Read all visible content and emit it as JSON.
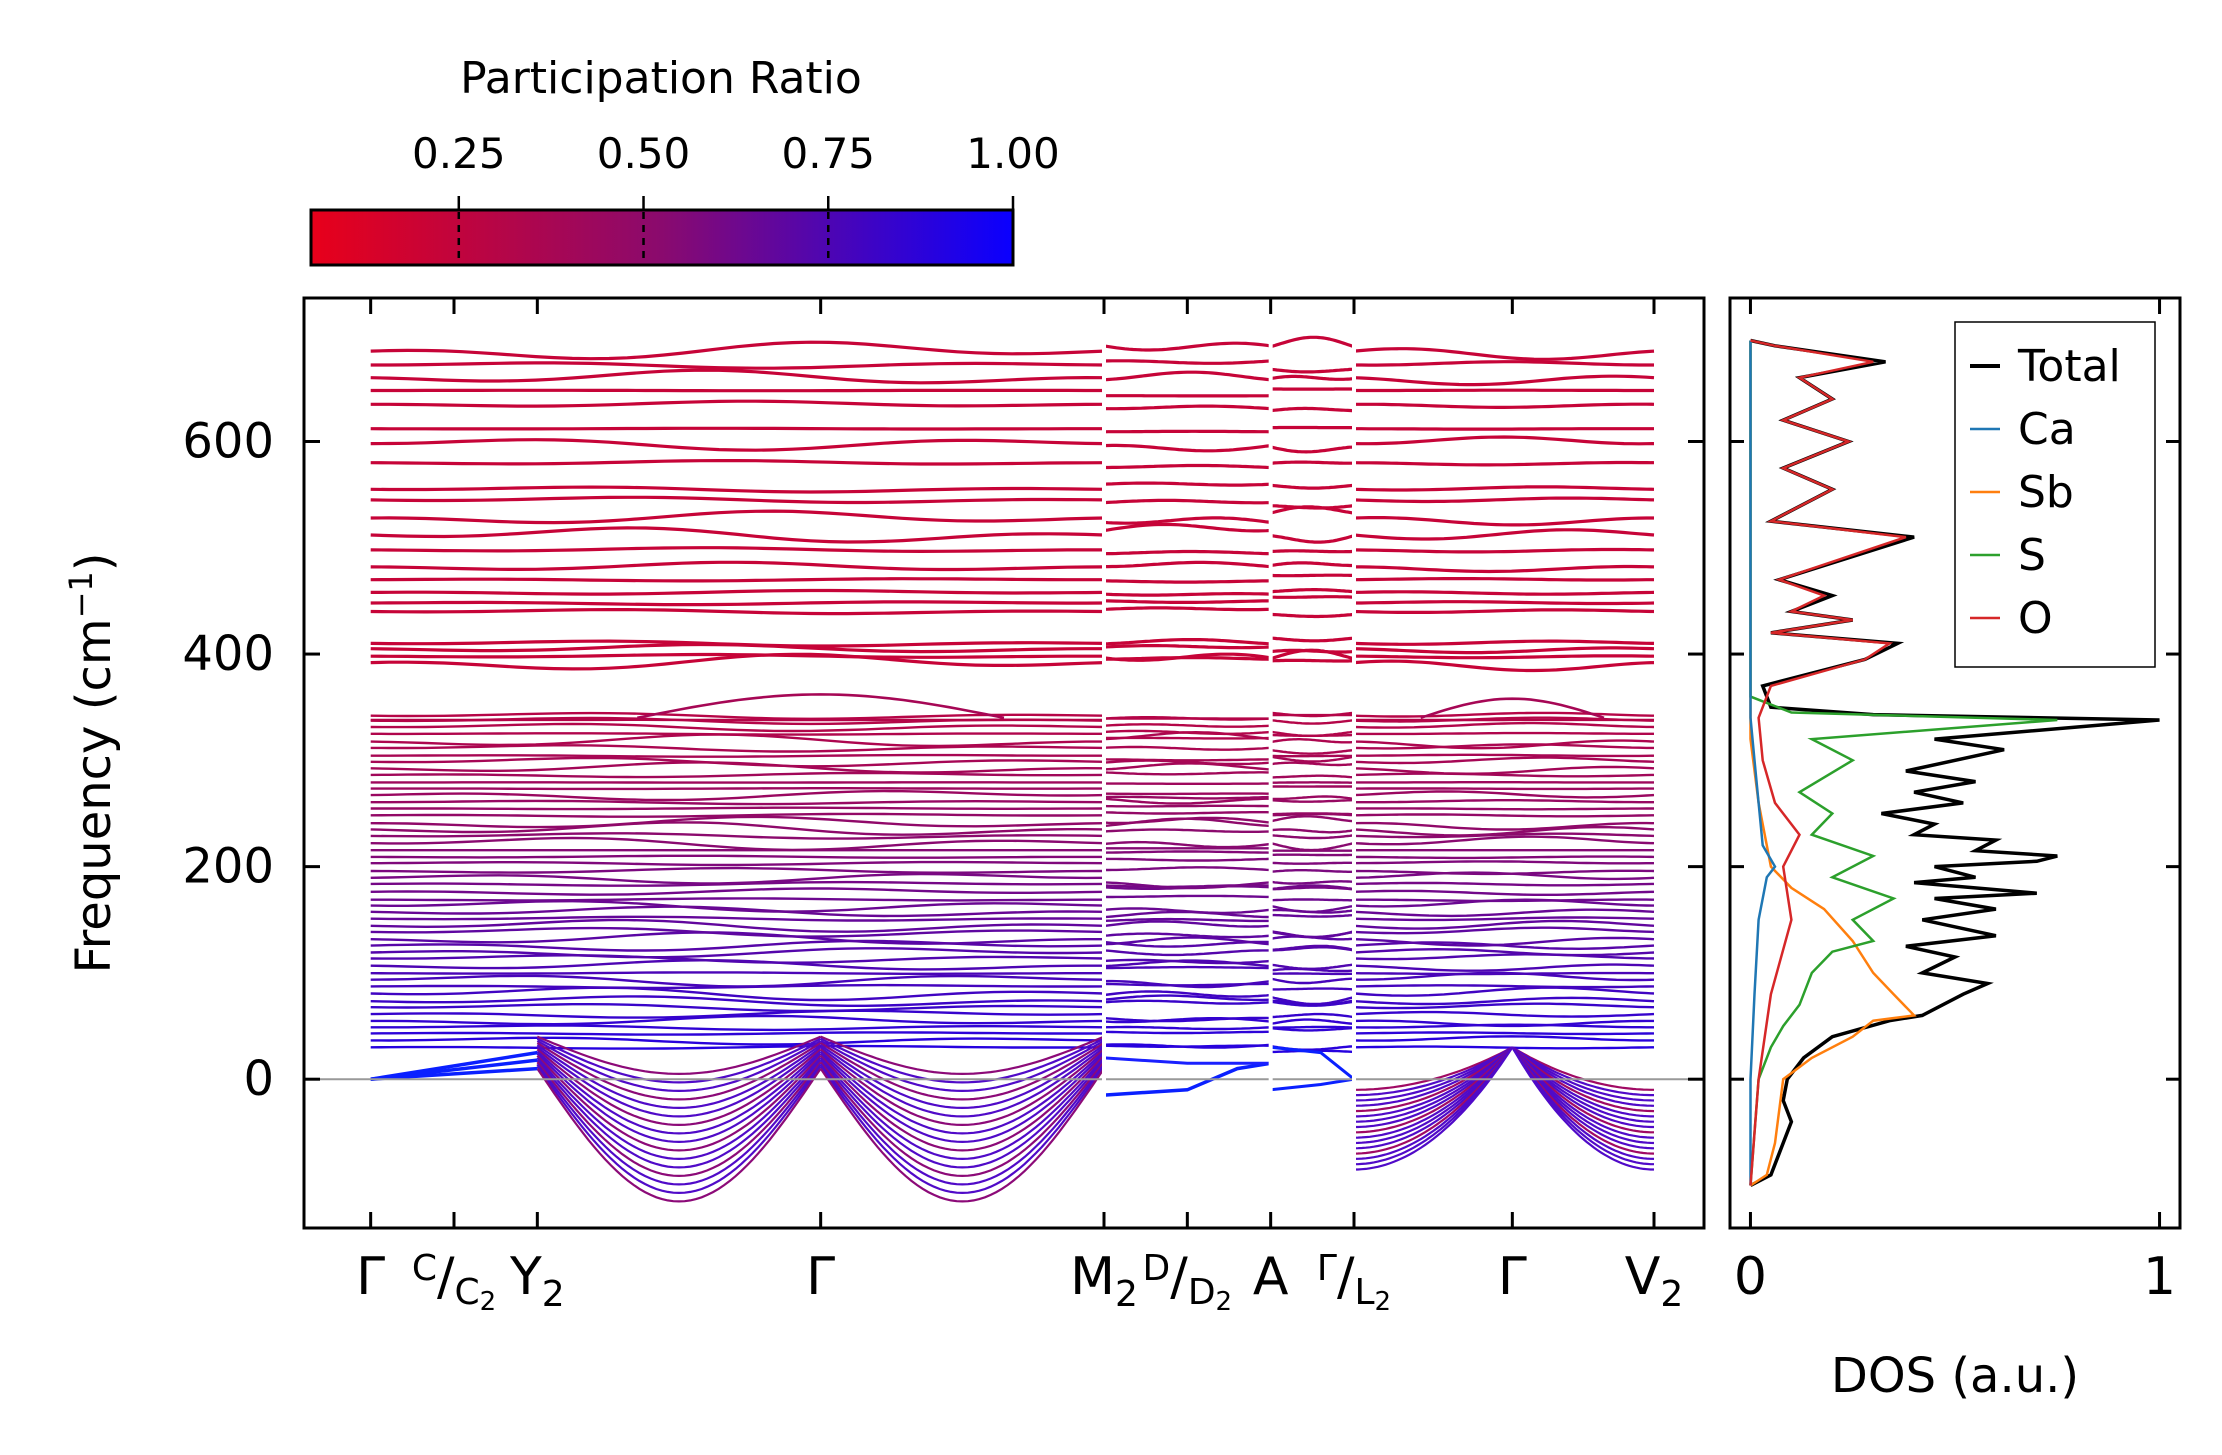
{
  "colorbar": {
    "title": "Participation Ratio",
    "ticks": [
      "0.25",
      "0.50",
      "0.75",
      "1.00"
    ],
    "tick_values": [
      0.25,
      0.5,
      0.75,
      1.0
    ],
    "range": [
      0.05,
      1.0
    ],
    "color_low": "#e8001a",
    "color_mid": "#8a0a6e",
    "color_high": "#0a00ff"
  },
  "chart_data": [
    {
      "type": "line",
      "name": "phonon-band-structure",
      "ylabel": "Frequency (cm",
      "ylabel_sup": "−1",
      "ylabel_end": ")",
      "ylim": [
        -140,
        735
      ],
      "y_ticks": [
        0,
        200,
        400,
        600
      ],
      "y_tick_labels": [
        "0",
        "200",
        "400",
        "600"
      ],
      "xlim": [
        -0.4,
        8.0
      ],
      "q_points": [
        {
          "label": "Γ",
          "x": 0
        },
        {
          "label": "C",
          "sub_label": "C",
          "sub": "2",
          "x": 0.5,
          "split": true
        },
        {
          "label": "Y",
          "sub": "2",
          "x": 1.0
        },
        {
          "label": "Γ",
          "x": 2.7
        },
        {
          "label": "M",
          "sub": "2",
          "x": 4.4
        },
        {
          "label": "D",
          "sub_label": "D",
          "sub": "2",
          "x": 4.9,
          "split": true
        },
        {
          "label": "A",
          "x": 5.4
        },
        {
          "label": "Γ",
          "sub_label": "L",
          "sub": "2",
          "x": 5.9,
          "split": true
        },
        {
          "label": "Γ",
          "x": 6.85
        },
        {
          "label": "V",
          "sub": "2",
          "x": 7.7
        }
      ],
      "breaks": [
        4.4,
        5.4,
        5.9
      ],
      "zero_line": 0
    },
    {
      "type": "line",
      "name": "phonon-dos",
      "xlabel": "DOS (a.u.)",
      "xlim": [
        -0.05,
        1.05
      ],
      "x_ticks": [
        0,
        1
      ],
      "x_tick_labels": [
        "0",
        "1"
      ],
      "ylim": [
        -140,
        735
      ],
      "legend_position": "top-right",
      "series": [
        {
          "name": "Total",
          "color": "#000000",
          "points": [
            [
              0.0,
              -100
            ],
            [
              0.05,
              -90
            ],
            [
              0.08,
              -60
            ],
            [
              0.1,
              -40
            ],
            [
              0.08,
              -20
            ],
            [
              0.09,
              0
            ],
            [
              0.13,
              20
            ],
            [
              0.2,
              40
            ],
            [
              0.34,
              55
            ],
            [
              0.42,
              60
            ],
            [
              0.52,
              80
            ],
            [
              0.58,
              90
            ],
            [
              0.42,
              100
            ],
            [
              0.5,
              115
            ],
            [
              0.38,
              125
            ],
            [
              0.6,
              135
            ],
            [
              0.42,
              150
            ],
            [
              0.6,
              160
            ],
            [
              0.45,
              170
            ],
            [
              0.7,
              175
            ],
            [
              0.4,
              185
            ],
            [
              0.55,
              190
            ],
            [
              0.45,
              200
            ],
            [
              0.7,
              205
            ],
            [
              0.75,
              210
            ],
            [
              0.55,
              215
            ],
            [
              0.6,
              225
            ],
            [
              0.4,
              230
            ],
            [
              0.45,
              240
            ],
            [
              0.32,
              250
            ],
            [
              0.52,
              260
            ],
            [
              0.4,
              270
            ],
            [
              0.55,
              280
            ],
            [
              0.38,
              290
            ],
            [
              0.62,
              310
            ],
            [
              0.45,
              320
            ],
            [
              1.0,
              338
            ],
            [
              0.3,
              343
            ],
            [
              0.05,
              350
            ],
            [
              0.03,
              370
            ],
            [
              0.28,
              395
            ],
            [
              0.36,
              410
            ],
            [
              0.05,
              420
            ],
            [
              0.25,
              432
            ],
            [
              0.1,
              440
            ],
            [
              0.2,
              455
            ],
            [
              0.07,
              470
            ],
            [
              0.4,
              510
            ],
            [
              0.05,
              525
            ],
            [
              0.2,
              555
            ],
            [
              0.08,
              575
            ],
            [
              0.24,
              600
            ],
            [
              0.08,
              620
            ],
            [
              0.2,
              640
            ],
            [
              0.12,
              660
            ],
            [
              0.33,
              675
            ],
            [
              0.06,
              690
            ],
            [
              0.0,
              695
            ]
          ]
        },
        {
          "name": "Ca",
          "color": "#1f77b4",
          "points": [
            [
              0.0,
              -100
            ],
            [
              0.0,
              0
            ],
            [
              0.01,
              80
            ],
            [
              0.02,
              150
            ],
            [
              0.04,
              190
            ],
            [
              0.06,
              200
            ],
            [
              0.03,
              220
            ],
            [
              0.02,
              260
            ],
            [
              0.01,
              300
            ],
            [
              0.0,
              340
            ],
            [
              0.0,
              695
            ]
          ]
        },
        {
          "name": "Sb",
          "color": "#ff7f0e",
          "points": [
            [
              0.0,
              -100
            ],
            [
              0.04,
              -90
            ],
            [
              0.06,
              -60
            ],
            [
              0.07,
              -30
            ],
            [
              0.08,
              0
            ],
            [
              0.15,
              20
            ],
            [
              0.25,
              40
            ],
            [
              0.3,
              55
            ],
            [
              0.4,
              60
            ],
            [
              0.35,
              80
            ],
            [
              0.3,
              100
            ],
            [
              0.25,
              130
            ],
            [
              0.18,
              160
            ],
            [
              0.1,
              180
            ],
            [
              0.05,
              200
            ],
            [
              0.02,
              260
            ],
            [
              0.0,
              320
            ],
            [
              0.0,
              695
            ]
          ]
        },
        {
          "name": "S",
          "color": "#2ca02c",
          "points": [
            [
              0.0,
              -100
            ],
            [
              0.01,
              -50
            ],
            [
              0.02,
              0
            ],
            [
              0.05,
              30
            ],
            [
              0.08,
              50
            ],
            [
              0.12,
              70
            ],
            [
              0.15,
              100
            ],
            [
              0.2,
              120
            ],
            [
              0.3,
              130
            ],
            [
              0.25,
              150
            ],
            [
              0.35,
              170
            ],
            [
              0.2,
              190
            ],
            [
              0.3,
              210
            ],
            [
              0.15,
              230
            ],
            [
              0.2,
              250
            ],
            [
              0.12,
              270
            ],
            [
              0.25,
              300
            ],
            [
              0.15,
              320
            ],
            [
              0.75,
              338
            ],
            [
              0.1,
              345
            ],
            [
              0.0,
              360
            ],
            [
              0.0,
              695
            ]
          ]
        },
        {
          "name": "O",
          "color": "#d62728",
          "points": [
            [
              0.0,
              -100
            ],
            [
              0.02,
              0
            ],
            [
              0.05,
              80
            ],
            [
              0.1,
              150
            ],
            [
              0.08,
              200
            ],
            [
              0.12,
              230
            ],
            [
              0.06,
              260
            ],
            [
              0.03,
              300
            ],
            [
              0.02,
              340
            ],
            [
              0.05,
              370
            ],
            [
              0.28,
              395
            ],
            [
              0.34,
              410
            ],
            [
              0.05,
              420
            ],
            [
              0.25,
              432
            ],
            [
              0.1,
              440
            ],
            [
              0.18,
              455
            ],
            [
              0.07,
              470
            ],
            [
              0.38,
              510
            ],
            [
              0.05,
              525
            ],
            [
              0.2,
              555
            ],
            [
              0.08,
              575
            ],
            [
              0.24,
              600
            ],
            [
              0.08,
              620
            ],
            [
              0.2,
              640
            ],
            [
              0.12,
              660
            ],
            [
              0.3,
              675
            ],
            [
              0.06,
              690
            ],
            [
              0.0,
              695
            ]
          ]
        }
      ]
    }
  ]
}
